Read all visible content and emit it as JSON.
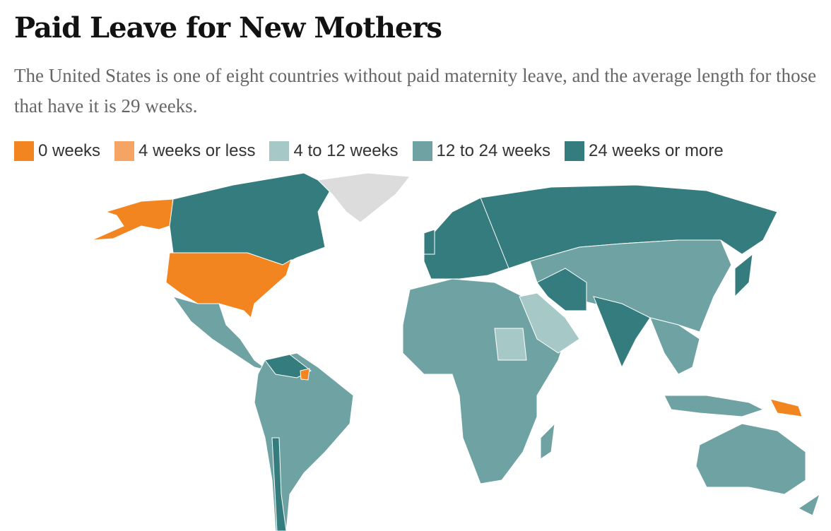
{
  "header": {
    "title": "Paid Leave for New Mothers",
    "subtitle": "The United States is one of eight countries without paid maternity leave, and the average length for those that have it is 29 weeks."
  },
  "legend": [
    {
      "label": "0 weeks",
      "color": "#f38521"
    },
    {
      "label": "4 weeks or less",
      "color": "#f5a464"
    },
    {
      "label": "4 to 12 weeks",
      "color": "#a6c9c8"
    },
    {
      "label": "12 to 24 weeks",
      "color": "#6fa3a3"
    },
    {
      "label": "24 weeks or more",
      "color": "#347c7e"
    }
  ]
}
